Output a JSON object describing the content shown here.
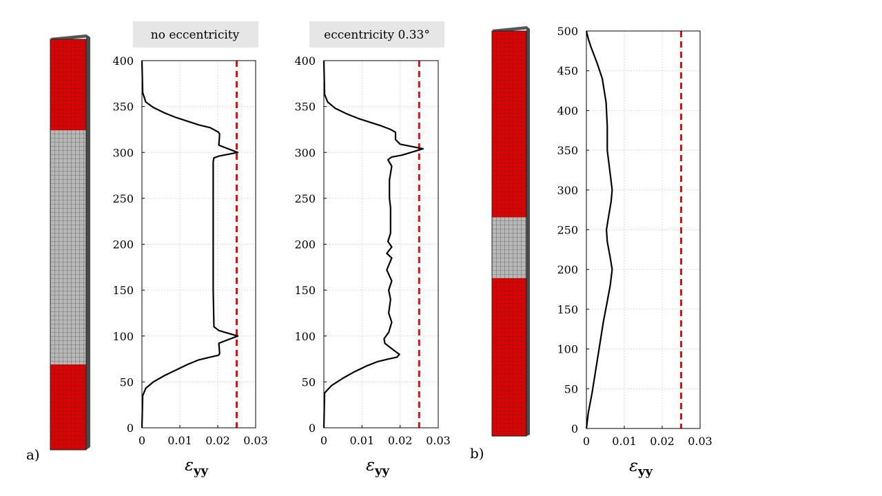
{
  "panel_labels": {
    "a": "a)",
    "b": "b)"
  },
  "chart_data": [
    {
      "type": "line",
      "title": "no eccentricity",
      "xlabel_symbol": "ε",
      "xlabel_subscript": "yy",
      "ylabel": "",
      "xlim": [
        0,
        0.03
      ],
      "ylim": [
        0,
        400
      ],
      "xticks": [
        0,
        0.01,
        0.02,
        0.03
      ],
      "xtick_labels": [
        "0",
        "0.01",
        "0.02",
        "0.03"
      ],
      "yticks": [
        0,
        50,
        100,
        150,
        200,
        250,
        300,
        350,
        400
      ],
      "ytick_labels": [
        "0",
        "50",
        "100",
        "150",
        "200",
        "250",
        "300",
        "350",
        "400"
      ],
      "grid": true,
      "series": [
        {
          "color": "#000000",
          "style": "solid",
          "x": [
            0,
            0.0002,
            0.001,
            0.003,
            0.006,
            0.009,
            0.012,
            0.015,
            0.018,
            0.0202,
            0.0205,
            0.0203,
            0.0208,
            0.0253,
            0.0203,
            0.019,
            0.0188,
            0.0188,
            0.0188,
            0.0188,
            0.0188,
            0.019,
            0.0203,
            0.0253,
            0.0208,
            0.0203,
            0.0205,
            0.0202,
            0.018,
            0.015,
            0.012,
            0.009,
            0.006,
            0.003,
            0.001,
            0.0002,
            0
          ],
          "y": [
            0,
            35,
            43,
            50,
            57,
            63,
            69,
            74,
            77,
            79,
            81,
            92,
            93,
            100,
            106,
            110,
            150,
            200,
            250,
            285,
            290,
            294,
            296,
            300,
            307,
            308,
            320,
            322,
            327,
            330,
            334,
            338,
            343,
            349,
            355,
            365,
            400
          ]
        }
      ],
      "reference_line": {
        "x": 0.025,
        "color": "#dd1111",
        "style": "dashed"
      }
    },
    {
      "type": "line",
      "title": "eccentricity 0.33°",
      "xlabel_symbol": "ε",
      "xlabel_subscript": "yy",
      "ylabel": "",
      "xlim": [
        0,
        0.03
      ],
      "ylim": [
        0,
        400
      ],
      "xticks": [
        0,
        0.01,
        0.02,
        0.03
      ],
      "xtick_labels": [
        "0",
        "0.01",
        "0.02",
        "0.03"
      ],
      "yticks": [
        0,
        50,
        100,
        150,
        200,
        250,
        300,
        350,
        400
      ],
      "ytick_labels": [
        "0",
        "50",
        "100",
        "150",
        "200",
        "250",
        "300",
        "350",
        "400"
      ],
      "grid": true,
      "series": [
        {
          "color": "#000000",
          "style": "solid",
          "x": [
            0,
            0.0002,
            0.002,
            0.005,
            0.008,
            0.011,
            0.014,
            0.017,
            0.0192,
            0.0198,
            0.0185,
            0.016,
            0.0158,
            0.017,
            0.0178,
            0.017,
            0.0175,
            0.017,
            0.0178,
            0.0165,
            0.0178,
            0.0165,
            0.0178,
            0.0168,
            0.0175,
            0.0175,
            0.0172,
            0.0172,
            0.0178,
            0.0168,
            0.0178,
            0.0205,
            0.026,
            0.02,
            0.0188,
            0.0188,
            0.0175,
            0.015,
            0.012,
            0.009,
            0.006,
            0.003,
            0.001,
            0.0002,
            0
          ],
          "y": [
            0,
            38,
            46,
            54,
            61,
            67,
            72,
            75,
            77,
            80,
            84,
            92,
            97,
            104,
            115,
            125,
            140,
            150,
            160,
            172,
            185,
            190,
            197,
            203,
            212,
            240,
            250,
            270,
            285,
            292,
            295,
            297,
            304,
            309,
            314,
            322,
            325,
            329,
            333,
            337,
            342,
            348,
            355,
            363,
            400
          ]
        }
      ],
      "reference_line": {
        "x": 0.025,
        "color": "#dd1111",
        "style": "dashed"
      }
    },
    {
      "type": "line",
      "title": "",
      "xlabel_symbol": "ε",
      "xlabel_subscript": "yy",
      "ylabel": "",
      "xlim": [
        0,
        0.03
      ],
      "ylim": [
        0,
        500
      ],
      "xticks": [
        0,
        0.01,
        0.02,
        0.03
      ],
      "xtick_labels": [
        "0",
        "0.01",
        "0.02",
        "0.03"
      ],
      "yticks": [
        0,
        50,
        100,
        150,
        200,
        250,
        300,
        350,
        400,
        450,
        500
      ],
      "ytick_labels": [
        "0",
        "50",
        "100",
        "150",
        "200",
        "250",
        "300",
        "350",
        "400",
        "450",
        "500"
      ],
      "grid": true,
      "series": [
        {
          "color": "#000000",
          "style": "solid",
          "x": [
            0,
            0.0005,
            0.0015,
            0.0025,
            0.0035,
            0.0045,
            0.0055,
            0.0063,
            0.0068,
            0.0063,
            0.0055,
            0.0053,
            0.0058,
            0.0065,
            0.0068,
            0.0063,
            0.0055,
            0.0055,
            0.0052,
            0.0042,
            0.0028,
            0.0012,
            0.0005,
            0
          ],
          "y": [
            0,
            20,
            45,
            75,
            105,
            135,
            160,
            180,
            200,
            215,
            235,
            250,
            265,
            285,
            300,
            320,
            350,
            380,
            410,
            440,
            460,
            480,
            490,
            500
          ]
        }
      ],
      "reference_line": {
        "x": 0.025,
        "color": "#dd1111",
        "style": "dashed"
      }
    }
  ],
  "specimens": [
    {
      "segments": [
        {
          "from": 0,
          "to": 0.222,
          "color": "#dd0000"
        },
        {
          "from": 0.222,
          "to": 0.792,
          "color": "#b8b8b8"
        },
        {
          "from": 0.792,
          "to": 1,
          "color": "#dd0000"
        }
      ]
    },
    {
      "segments": [
        {
          "from": 0,
          "to": 0.46,
          "color": "#dd0000"
        },
        {
          "from": 0.46,
          "to": 0.61,
          "color": "#b8b8b8"
        },
        {
          "from": 0.61,
          "to": 1,
          "color": "#dd0000"
        }
      ]
    }
  ]
}
